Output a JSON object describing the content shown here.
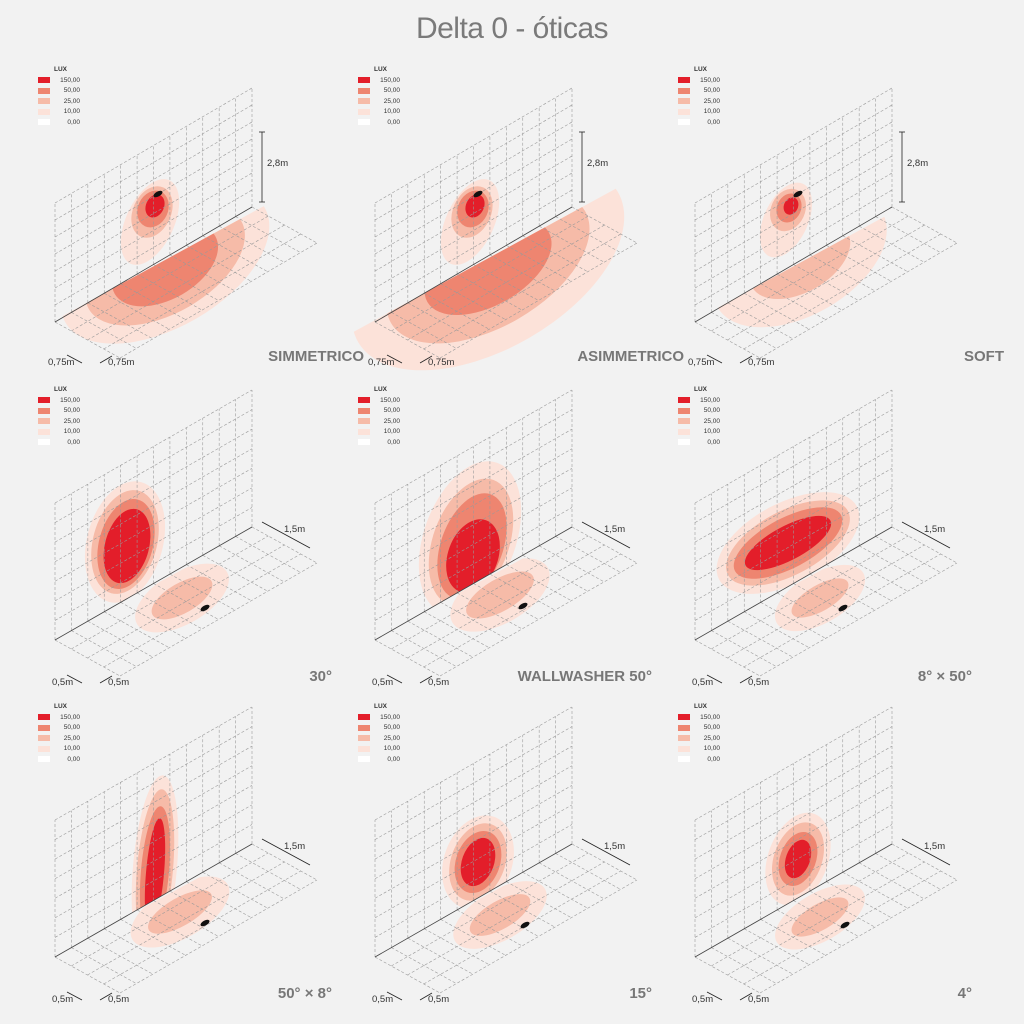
{
  "title": "Delta 0 - óticas",
  "legend": {
    "header": "LUX",
    "items": [
      {
        "label": "150,00",
        "color": "#e31e2a"
      },
      {
        "label": "50,00",
        "color": "#ee8570"
      },
      {
        "label": "25,00",
        "color": "#f6bba8"
      },
      {
        "label": "10,00",
        "color": "#fce2d9"
      },
      {
        "label": "0,00",
        "color": "#ffffff"
      }
    ]
  },
  "panels": [
    {
      "title": "SIMMETRICO",
      "dim_a": "0,75m",
      "dim_b": "0,75m",
      "dim_c": "2,8m"
    },
    {
      "title": "ASIMMETRICO",
      "dim_a": "0,75m",
      "dim_b": "0,75m",
      "dim_c": "2,8m"
    },
    {
      "title": "SOFT",
      "dim_a": "0,75m",
      "dim_b": "0,75m",
      "dim_c": "2,8m"
    },
    {
      "title": "30°",
      "dim_a": "0,5m",
      "dim_b": "0,5m",
      "dim_c": "1,5m"
    },
    {
      "title": "WALLWASHER 50°",
      "dim_a": "0,5m",
      "dim_b": "0,5m",
      "dim_c": "1,5m"
    },
    {
      "title": "8° × 50°",
      "dim_a": "0,5m",
      "dim_b": "0,5m",
      "dim_c": "1,5m"
    },
    {
      "title": "50° × 8°",
      "dim_a": "0,5m",
      "dim_b": "0,5m",
      "dim_c": "1,5m"
    },
    {
      "title": "15°",
      "dim_a": "0,5m",
      "dim_b": "0,5m",
      "dim_c": "1,5m"
    },
    {
      "title": "4°",
      "dim_a": "0,5m",
      "dim_b": "0,5m",
      "dim_c": "1,5m"
    }
  ]
}
